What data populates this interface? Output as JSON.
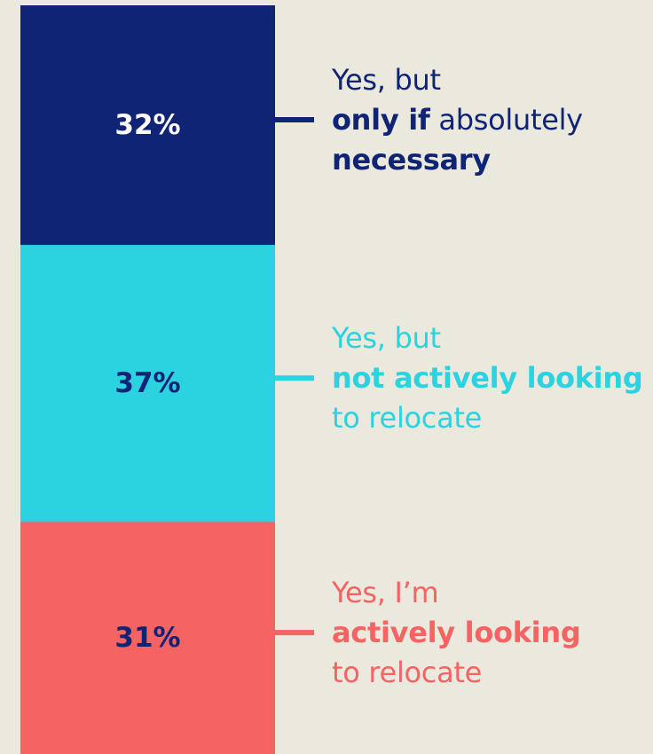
{
  "chart_data": {
    "type": "bar",
    "stacked": true,
    "orientation": "vertical",
    "ylim": [
      0,
      100
    ],
    "series": [
      {
        "value": 32,
        "label": "32%",
        "color": "#0f2475",
        "label_color": "#ffffff",
        "annotation": {
          "line1": "Yes, but",
          "line2_bold": "only if",
          "line2_rest": " absolutely",
          "line3_bold": "necessary",
          "line3_rest": ""
        }
      },
      {
        "value": 37,
        "label": "37%",
        "color": "#2bd3e0",
        "label_color": "#0f2475",
        "annotation": {
          "line1": "Yes, but",
          "line2_bold": "not actively looking",
          "line2_rest": "",
          "line3_bold": "",
          "line3_rest": "to relocate"
        }
      },
      {
        "value": 31,
        "label": "31%",
        "color": "#f56363",
        "label_color": "#0f2475",
        "annotation": {
          "line1": "Yes, I’m",
          "line2_bold": "actively looking",
          "line2_rest": "",
          "line3_bold": "",
          "line3_rest": "to relocate"
        }
      }
    ]
  }
}
